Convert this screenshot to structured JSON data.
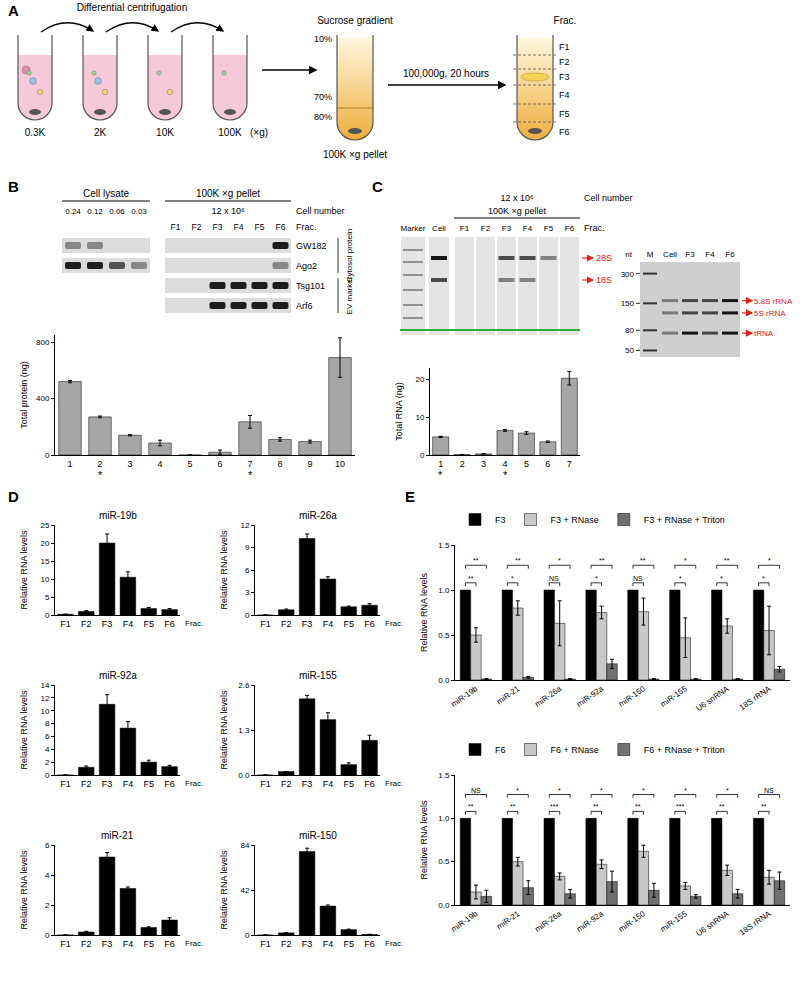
{
  "panel_labels": [
    "A",
    "B",
    "C",
    "D",
    "E"
  ],
  "diagram": {
    "step1": "Differential centrifugation",
    "speeds": [
      "0.3K",
      "2K",
      "10K",
      "100K"
    ],
    "unit": "(×g)",
    "gradient": "Sucrose gradient",
    "gradient_levels": [
      "10%",
      "70%",
      "80%"
    ],
    "pellet": "100K ×g pellet",
    "spin": "100,000g, 20 hours",
    "fraction_title": "Frac.",
    "fractions": [
      "F1",
      "F2",
      "F3",
      "F4",
      "F5",
      "F6"
    ]
  },
  "blot": {
    "groups": [
      "Cell lysate",
      "100K ×g pellet"
    ],
    "cell_number_label": "Cell number",
    "lysate_lanes": [
      "0.24",
      "0.12",
      "0.06",
      "0.03"
    ],
    "pellet_cells": "12 x 10⁶",
    "fraction_title": "Frac.",
    "pellet_lanes": [
      "F1",
      "F2",
      "F3",
      "F4",
      "F5",
      "F6"
    ],
    "rows": [
      {
        "label": "GW182",
        "signal": [
          1,
          1,
          0,
          0,
          0,
          0,
          0,
          0,
          0,
          3
        ]
      },
      {
        "label": "Ago2",
        "signal": [
          3,
          3,
          2,
          1,
          0,
          0,
          0,
          0,
          0,
          1
        ]
      },
      {
        "label": "Tsg101",
        "signal": [
          null,
          null,
          null,
          null,
          0,
          0,
          3,
          3,
          3,
          3
        ]
      },
      {
        "label": "Arf6",
        "signal": [
          null,
          null,
          null,
          null,
          0,
          0,
          3,
          3,
          3,
          3
        ]
      }
    ],
    "row_groups": [
      {
        "label": "Cytosol protein",
        "rows": [
          "GW182",
          "Ago2"
        ]
      },
      {
        "label": "EV marker",
        "rows": [
          "Tsg101",
          "Arf6"
        ]
      }
    ]
  },
  "gel": {
    "cell_number": "12 x 10⁶",
    "cell_number_label": "Cell number",
    "pellet": "100K ×g pellet",
    "lanes": [
      "Marker",
      "Cell",
      "F1",
      "F2",
      "F3",
      "F4",
      "F5",
      "F6"
    ],
    "fraction_title": "Frac.",
    "rows": [
      {
        "label": "28S",
        "signal": [
          0,
          3,
          0,
          0,
          2,
          2,
          1,
          0
        ]
      },
      {
        "label": "18S",
        "signal": [
          0,
          2,
          0,
          0,
          1,
          1,
          0,
          0
        ]
      }
    ],
    "zoom": {
      "axis_label": "nt",
      "lanes": [
        "M",
        "Cell",
        "F3",
        "F4",
        "F6"
      ],
      "nt_lim": [
        45,
        350
      ],
      "nt_ticks": [
        300,
        150,
        80,
        50
      ],
      "rows": [
        {
          "label": "5.8S rRNA",
          "nt": 160,
          "signal": [
            0,
            1,
            2,
            2,
            3
          ]
        },
        {
          "label": "5S rRNA",
          "nt": 120,
          "signal": [
            0,
            1,
            2,
            2,
            3
          ]
        },
        {
          "label": "tRNA",
          "nt": 75,
          "signal": [
            0,
            1,
            3,
            2,
            3
          ]
        }
      ]
    }
  },
  "chart_data": [
    {
      "type": "bar",
      "categories": [
        "1",
        "2",
        "3",
        "4",
        "5",
        "6",
        "7",
        "8",
        "9",
        "10"
      ],
      "values": [
        520,
        270,
        140,
        85,
        0,
        20,
        235,
        110,
        95,
        690
      ],
      "errors": [
        8,
        6,
        4,
        20,
        0,
        15,
        45,
        12,
        10,
        140
      ],
      "color": "#a6a6a6",
      "y_label": "Total protein (ng)",
      "ylim": [
        0,
        850
      ],
      "yticks": [
        0,
        400,
        800
      ],
      "annotations": [
        {
          "category": "2",
          "text": "*"
        },
        {
          "category": "7",
          "text": "*"
        }
      ]
    },
    {
      "type": "bar",
      "categories": [
        "1",
        "2",
        "3",
        "4",
        "5",
        "6",
        "7"
      ],
      "values": [
        4.8,
        0.1,
        0.3,
        6.5,
        5.8,
        3.5,
        20.3
      ],
      "errors": [
        0.15,
        0.05,
        0.1,
        0.25,
        0.35,
        0.2,
        1.8
      ],
      "color": "#a6a6a6",
      "y_label": "Total RNA (ng)",
      "ylim": [
        0,
        23
      ],
      "yticks": [
        0,
        10,
        20
      ],
      "annotations": [
        {
          "category": "1",
          "text": "*"
        },
        {
          "category": "4",
          "text": "*"
        }
      ]
    },
    {
      "type": "bar",
      "title": "miR-19b",
      "categories": [
        "F1",
        "F2",
        "F3",
        "F4",
        "F5",
        "F6"
      ],
      "values": [
        0.2,
        1,
        20,
        10.5,
        1.8,
        1.5
      ],
      "errors": [
        0,
        0.2,
        2.5,
        1.5,
        0.3,
        0.3
      ],
      "color": "#000000",
      "x_label": "Frac.",
      "y_label": "Relative RNA levels",
      "ylim": [
        0,
        25
      ],
      "yticks": [
        0,
        5,
        10,
        15,
        20,
        25
      ]
    },
    {
      "type": "bar",
      "title": "miR-26a",
      "categories": [
        "F1",
        "F2",
        "F3",
        "F4",
        "F5",
        "F6"
      ],
      "values": [
        0,
        0.7,
        10.2,
        4.8,
        1.1,
        1.3
      ],
      "errors": [
        0,
        0.1,
        0.6,
        0.3,
        0.1,
        0.2
      ],
      "color": "#000000",
      "x_label": "Frac.",
      "y_label": "Relative RNA levels",
      "ylim": [
        0,
        12
      ],
      "yticks": [
        0,
        3,
        6,
        9,
        12
      ]
    },
    {
      "type": "bar",
      "title": "miR-92a",
      "categories": [
        "F1",
        "F2",
        "F3",
        "F4",
        "F5",
        "F6"
      ],
      "values": [
        0,
        1.2,
        11,
        7.3,
        2,
        1.3
      ],
      "errors": [
        0,
        0.2,
        1.5,
        1,
        0.3,
        0.2
      ],
      "color": "#000000",
      "x_label": "Frac.",
      "y_label": "Relative RNA levels",
      "ylim": [
        0,
        14
      ],
      "yticks": [
        0,
        2,
        4,
        6,
        8,
        10,
        12,
        14
      ]
    },
    {
      "type": "bar",
      "title": "miR-155",
      "categories": [
        "F1",
        "F2",
        "F3",
        "F4",
        "F5",
        "F6"
      ],
      "values": [
        0,
        0.1,
        2.2,
        1.6,
        0.3,
        1.0
      ],
      "errors": [
        0,
        0,
        0.1,
        0.2,
        0.05,
        0.15
      ],
      "color": "#000000",
      "x_label": "Frac.",
      "y_label": "Relative RNA levels",
      "ylim": [
        0,
        2.6
      ],
      "yticks": [
        {
          "value": 0,
          "label": "0.0"
        },
        1.3,
        2.6
      ]
    },
    {
      "type": "bar",
      "title": "miR-21",
      "categories": [
        "F1",
        "F2",
        "F3",
        "F4",
        "F5",
        "F6"
      ],
      "values": [
        0,
        0.2,
        5.2,
        3.1,
        0.5,
        1.0
      ],
      "errors": [
        0,
        0.05,
        0.3,
        0.1,
        0.05,
        0.15
      ],
      "color": "#000000",
      "x_label": "Frac.",
      "y_label": "Relative RNA levels",
      "ylim": [
        0,
        6
      ],
      "yticks": [
        0,
        2,
        4,
        6
      ]
    },
    {
      "type": "bar",
      "title": "miR-150",
      "categories": [
        "F1",
        "F2",
        "F3",
        "F4",
        "F5",
        "F6"
      ],
      "values": [
        0,
        2,
        78,
        27,
        5,
        0.5
      ],
      "errors": [
        0,
        0.3,
        3,
        1,
        0.5,
        0.2
      ],
      "color": "#000000",
      "x_label": "Frac.",
      "y_label": "Relative RNA levels",
      "ylim": [
        0,
        84
      ],
      "yticks": [
        0,
        42,
        84
      ]
    },
    {
      "type": "bar",
      "legend": "top",
      "categories": [
        "miR-19b",
        "miR-21",
        "miR-26a",
        "miR-92a",
        "miR-150",
        "miR-155",
        "U6 snRNA",
        "18S rRNA"
      ],
      "series": [
        {
          "name": "F3",
          "color": "#000000",
          "values": [
            1,
            1,
            1,
            1,
            1,
            1,
            1,
            1
          ]
        },
        {
          "name": "F3 + RNase",
          "color": "#c8c8c8",
          "values": [
            0.5,
            0.8,
            0.63,
            0.75,
            0.76,
            0.47,
            0.6,
            0.55
          ],
          "errors": [
            0.08,
            0.08,
            0.25,
            0.07,
            0.15,
            0.22,
            0.08,
            0.27
          ]
        },
        {
          "name": "F3 + RNase + Triton",
          "color": "#707070",
          "values": [
            0.01,
            0.03,
            0.01,
            0.18,
            0.01,
            0.01,
            0.01,
            0.12
          ],
          "errors": [
            0.005,
            0.01,
            0.005,
            0.05,
            0.005,
            0.005,
            0.005,
            0.03
          ]
        }
      ],
      "comparisons": [
        {
          "between": [
            "F3",
            "F3 + RNase"
          ],
          "labels": [
            "**",
            "*",
            "NS",
            "*",
            "NS",
            "*",
            "*",
            "*"
          ]
        },
        {
          "between": [
            "F3",
            "F3 + RNase + Triton"
          ],
          "labels": [
            "**",
            "**",
            "*",
            "**",
            "**",
            "*",
            "**",
            "*"
          ]
        }
      ],
      "y_label": "Relative RNA levels",
      "ylim": [
        0,
        1.5
      ],
      "yticks": [
        {
          "value": 0,
          "label": "0.0"
        },
        0.5,
        {
          "value": 1,
          "label": "1.0"
        },
        1.5
      ]
    },
    {
      "type": "bar",
      "legend": "top",
      "categories": [
        "miR-19b",
        "miR-21",
        "miR-26a",
        "miR-92a",
        "miR-150",
        "miR-155",
        "U6 snRNA",
        "18S rRNA"
      ],
      "series": [
        {
          "name": "F6",
          "color": "#000000",
          "values": [
            1,
            1,
            1,
            1,
            1,
            1,
            1,
            1
          ]
        },
        {
          "name": "F6 + RNase",
          "color": "#c8c8c8",
          "values": [
            0.15,
            0.5,
            0.33,
            0.47,
            0.62,
            0.22,
            0.4,
            0.32
          ],
          "errors": [
            0.08,
            0.05,
            0.04,
            0.05,
            0.07,
            0.04,
            0.06,
            0.08
          ]
        },
        {
          "name": "F6 + RNase + Triton",
          "color": "#707070",
          "values": [
            0.1,
            0.2,
            0.13,
            0.27,
            0.17,
            0.1,
            0.13,
            0.28
          ],
          "errors": [
            0.07,
            0.08,
            0.05,
            0.12,
            0.08,
            0.02,
            0.05,
            0.1
          ]
        }
      ],
      "comparisons": [
        {
          "between": [
            "F6",
            "F6 + RNase"
          ],
          "labels": [
            "**",
            "**",
            "***",
            "**",
            "**",
            "***",
            "**",
            "**"
          ]
        },
        {
          "between": [
            "F6",
            "F6 + RNase + Triton"
          ],
          "labels": [
            "NS",
            "*",
            "*",
            "*",
            "*",
            "*",
            "*",
            "NS"
          ]
        }
      ],
      "y_label": "Relative RNA levels",
      "ylim": [
        0,
        1.5
      ],
      "yticks": [
        {
          "value": 0,
          "label": "0.0"
        },
        0.5,
        {
          "value": 1,
          "label": "1.0"
        },
        1.5
      ]
    }
  ]
}
